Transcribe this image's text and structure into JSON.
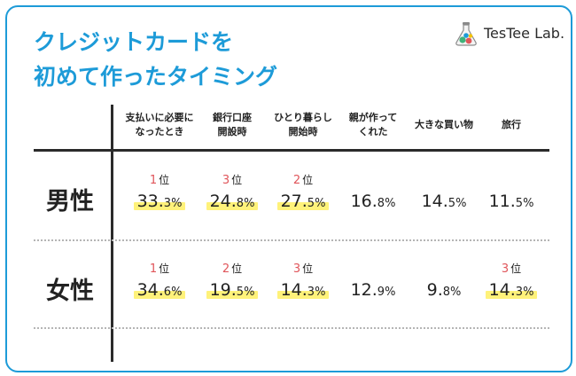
{
  "title_lines": [
    "クレジットカードを",
    "初めて作ったタイミング"
  ],
  "logo_text": "TesTee Lab.",
  "colors": {
    "title": "#1d9bd8",
    "rank": "#e0555a",
    "highlight": "#fff27a",
    "text": "#222222"
  },
  "chart_data": {
    "type": "table",
    "unit": "%",
    "columns": [
      "支払いに必要になったとき",
      "銀行口座開設時",
      "ひとり暮らし開始時",
      "親が作ってくれた",
      "大きな買い物",
      "旅行"
    ],
    "column_header_lines": [
      [
        "支払いに必要に",
        "なったとき"
      ],
      [
        "銀行口座",
        "開設時"
      ],
      [
        "ひとり暮らし",
        "開始時"
      ],
      [
        "親が作って",
        "くれた"
      ],
      [
        "大きな買い物"
      ],
      [
        "旅行"
      ]
    ],
    "rows": [
      {
        "label": "男性",
        "values": [
          33.3,
          24.8,
          27.5,
          16.8,
          14.5,
          11.5
        ],
        "value_labels": [
          [
            "33.",
            "3%"
          ],
          [
            "24.",
            "8%"
          ],
          [
            "27.",
            "5%"
          ],
          [
            "16.",
            "8%"
          ],
          [
            "14.",
            "5%"
          ],
          [
            "11.",
            "5%"
          ]
        ],
        "ranks": [
          "1",
          "3",
          "2",
          null,
          null,
          null
        ]
      },
      {
        "label": "女性",
        "values": [
          34.6,
          19.5,
          14.3,
          12.9,
          9.8,
          14.3
        ],
        "value_labels": [
          [
            "34.",
            "6%"
          ],
          [
            "19.",
            "5%"
          ],
          [
            "14.",
            "3%"
          ],
          [
            "12.",
            "9%"
          ],
          [
            "9.",
            "8%"
          ],
          [
            "14.",
            "3%"
          ]
        ],
        "ranks": [
          "1",
          "2",
          "3",
          null,
          null,
          "3"
        ]
      }
    ],
    "rank_suffix": "位"
  }
}
